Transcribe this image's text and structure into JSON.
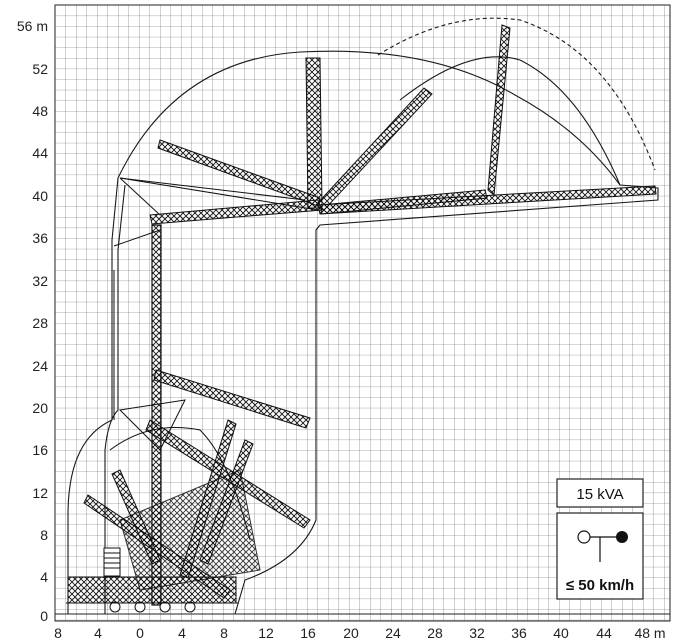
{
  "diagram": {
    "y_axis": {
      "unit": "m",
      "labels": [
        "56 m",
        "52",
        "48",
        "44",
        "40",
        "36",
        "32",
        "28",
        "24",
        "20",
        "16",
        "12",
        "8",
        "4",
        "0"
      ]
    },
    "x_axis": {
      "unit": "m",
      "labels": [
        "8",
        "4",
        "0",
        "4",
        "8",
        "12",
        "16",
        "20",
        "24",
        "28",
        "32",
        "36",
        "40",
        "44",
        "48 m"
      ]
    },
    "power_box": {
      "label": "15 kVA"
    },
    "wind_box": {
      "label": "≤ 50 km/h",
      "icon": "wind-limit-icon"
    },
    "colors": {
      "grid": "#333333",
      "lines": "#1a1a1a",
      "background": "#ffffff"
    }
  }
}
